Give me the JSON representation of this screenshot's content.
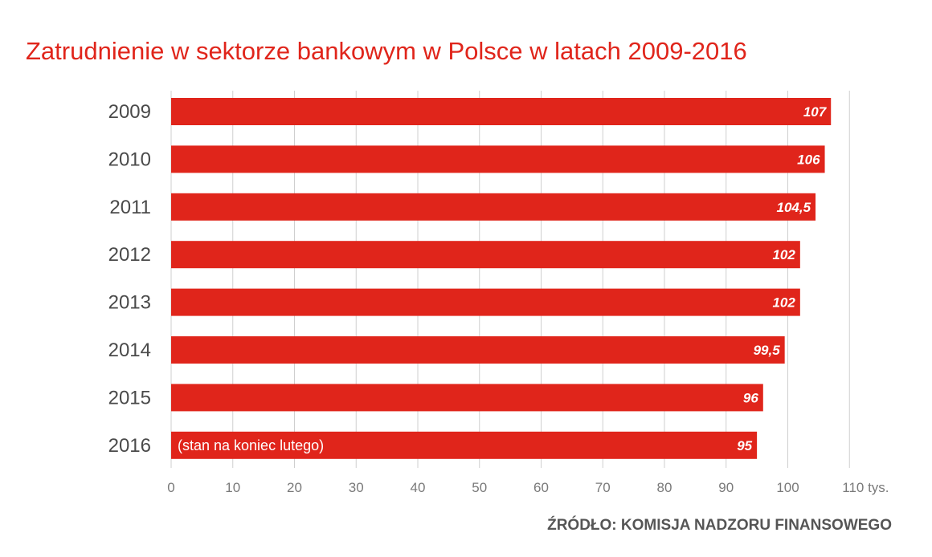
{
  "colors": {
    "bar": "#e0251b",
    "title": "#e0251b",
    "grid": "#cfcfcf",
    "year_label": "#4a4a4a",
    "tick_label": "#7a7a7a",
    "bar_text": "#ffffff",
    "source": "#555555"
  },
  "source_note": "ŹRÓDŁO: KOMISJA NADZORU FINANSOWEGO",
  "chart_data": {
    "type": "bar",
    "orientation": "horizontal",
    "title": "Zatrudnienie w sektorze bankowym w Polsce w latach 2009-2016",
    "categories": [
      "2009",
      "2010",
      "2011",
      "2012",
      "2013",
      "2014",
      "2015",
      "2016"
    ],
    "values": [
      107,
      106,
      104.5,
      102,
      102,
      99.5,
      96,
      95
    ],
    "value_labels": [
      "107",
      "106",
      "104,5",
      "102",
      "102",
      "99,5",
      "96",
      "95"
    ],
    "annotations": [
      {
        "category": "2016",
        "text": "(stan na koniec lutego)"
      }
    ],
    "xlim": [
      0,
      110
    ],
    "xticks": [
      0,
      10,
      20,
      30,
      40,
      50,
      60,
      70,
      80,
      90,
      100,
      110
    ],
    "xtick_labels": [
      "0",
      "10",
      "20",
      "30",
      "40",
      "50",
      "60",
      "70",
      "80",
      "90",
      "100",
      "110 tys."
    ],
    "grid": true,
    "legend": "none"
  }
}
